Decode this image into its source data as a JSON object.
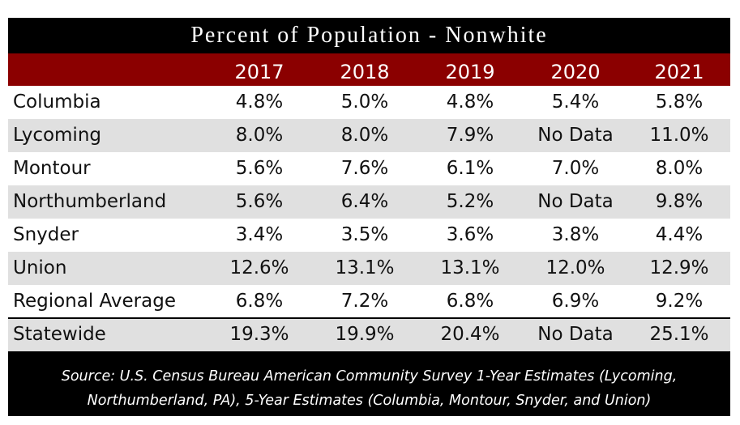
{
  "chart_data": {
    "type": "table",
    "title": "Percent of Population - Nonwhite",
    "columns": [
      "",
      "2017",
      "2018",
      "2019",
      "2020",
      "2021"
    ],
    "rows": [
      {
        "name": "Columbia",
        "values": [
          "4.8%",
          "5.0%",
          "4.8%",
          "5.4%",
          "5.8%"
        ]
      },
      {
        "name": "Lycoming",
        "values": [
          "8.0%",
          "8.0%",
          "7.9%",
          "No Data",
          "11.0%"
        ]
      },
      {
        "name": "Montour",
        "values": [
          "5.6%",
          "7.6%",
          "6.1%",
          "7.0%",
          "8.0%"
        ]
      },
      {
        "name": "Northumberland",
        "values": [
          "5.6%",
          "6.4%",
          "5.2%",
          "No Data",
          "9.8%"
        ]
      },
      {
        "name": "Snyder",
        "values": [
          "3.4%",
          "3.5%",
          "3.6%",
          "3.8%",
          "4.4%"
        ]
      },
      {
        "name": "Union",
        "values": [
          "12.6%",
          "13.1%",
          "13.1%",
          "12.0%",
          "12.9%"
        ]
      },
      {
        "name": "Regional Average",
        "values": [
          "6.8%",
          "7.2%",
          "6.8%",
          "6.9%",
          "9.2%"
        ]
      },
      {
        "name": "Statewide",
        "values": [
          "19.3%",
          "19.9%",
          "20.4%",
          "No Data",
          "25.1%"
        ]
      }
    ],
    "source_line1": "Source: U.S. Census Bureau American Community Survey 1-Year Estimates (Lycoming,",
    "source_line2": "Northumberland, PA), 5-Year Estimates (Columbia, Montour, Snyder, and Union)"
  },
  "colors": {
    "frame": "#000000",
    "header": "#8b0000",
    "row_alt": "#e0e0e0",
    "text_light": "#ffffff"
  }
}
